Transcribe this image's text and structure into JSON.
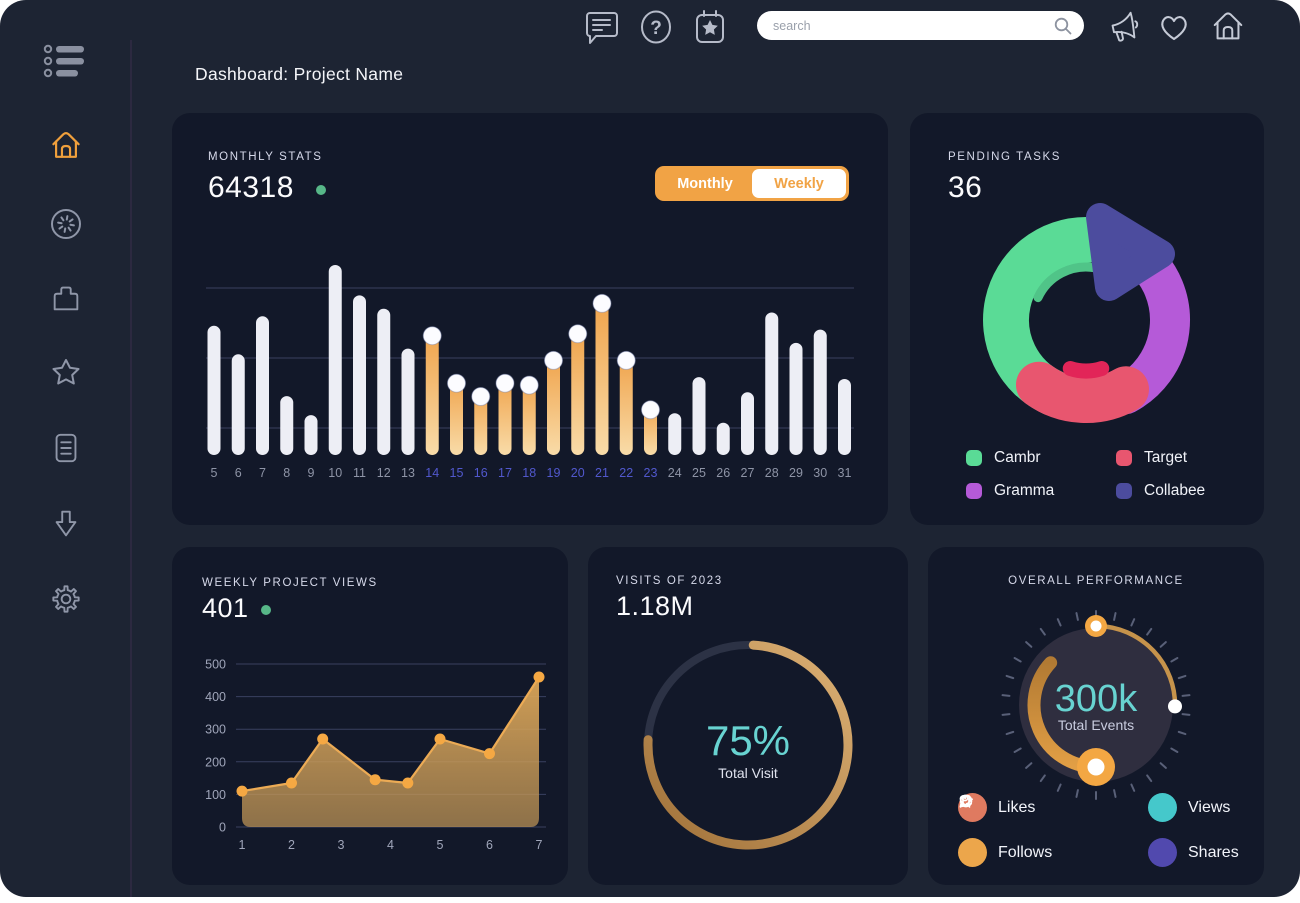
{
  "page": {
    "title": "Dashboard: Project Name"
  },
  "topbar": {
    "search_placeholder": "search",
    "icons": [
      "menu-list-icon",
      "chat-icon",
      "help-icon",
      "calendar-star-icon",
      "search-icon",
      "megaphone-icon",
      "heart-icon",
      "home-icon"
    ]
  },
  "sidebar": {
    "items": [
      "home",
      "activity",
      "briefcase",
      "favorites",
      "documents",
      "downloads",
      "settings"
    ],
    "active_item": "home",
    "active_color": "#f0a03c"
  },
  "colors": {
    "page_bg": "#ffffff",
    "dashboard_bg": "#1d2433",
    "card_bg": "#121829",
    "accent_orange": "#f1a345",
    "teal": "#68d3d1",
    "green_dot": "#57b788",
    "highlight_day_label": "#5158cd",
    "gold": "#c79a55"
  },
  "cards": {
    "monthly_stats": {
      "label": "MONTHLY STATS",
      "value": "64318",
      "toggle": {
        "monthly": "Monthly",
        "weekly": "Weekly",
        "active": "Monthly"
      }
    },
    "pending_tasks": {
      "label": "PENDING TASKS",
      "value": "36",
      "legend": [
        {
          "name": "Cambr",
          "color": "#5adb96"
        },
        {
          "name": "Target",
          "color": "#e8566f"
        },
        {
          "name": "Gramma",
          "color": "#b55ad8"
        },
        {
          "name": "Collabee",
          "color": "#4c4c9e"
        }
      ]
    },
    "weekly_views": {
      "label": "WEEKLY PROJECT VIEWS",
      "value": "401"
    },
    "visits": {
      "label": "VISITS OF 2023",
      "value": "1.18M",
      "percent": "75%",
      "caption": "Total Visit"
    },
    "performance": {
      "label": "OVERALL PERFORMANCE",
      "value": "300k",
      "caption": "Total Events",
      "legend": [
        {
          "name": "Likes",
          "color": "#df7a60"
        },
        {
          "name": "Views",
          "color": "#45c8cb"
        },
        {
          "name": "Follows",
          "color": "#eca64b"
        },
        {
          "name": "Shares",
          "color": "#5149ae"
        }
      ]
    }
  },
  "chart_data": [
    {
      "id": "monthly-stats-bars",
      "type": "bar",
      "title": "Monthly Stats",
      "categories": [
        "5",
        "6",
        "7",
        "8",
        "9",
        "10",
        "11",
        "12",
        "13",
        "14",
        "15",
        "16",
        "17",
        "18",
        "19",
        "20",
        "21",
        "22",
        "23",
        "24",
        "25",
        "26",
        "27",
        "28",
        "29",
        "30",
        "31"
      ],
      "values": [
        68,
        53,
        73,
        31,
        21,
        100,
        84,
        77,
        56,
        67,
        42,
        35,
        42,
        41,
        54,
        68,
        84,
        54,
        28,
        22,
        41,
        17,
        33,
        75,
        59,
        66,
        40
      ],
      "highlighted_categories": [
        "14",
        "15",
        "16",
        "17",
        "18",
        "19",
        "20",
        "21",
        "22",
        "23"
      ],
      "ylim": [
        0,
        100
      ],
      "grid": true,
      "gridline_count": 3,
      "bar_color": "#edeef5",
      "highlight_gradient": [
        "#efa148",
        "#f9dca9"
      ],
      "label_color": "#8e94a6",
      "highlight_label_color": "#5158cd"
    },
    {
      "id": "pending-tasks-donut",
      "type": "pie",
      "title": "Pending Tasks",
      "segments": [
        {
          "name": "Cambr",
          "value": 43,
          "color": "#5adb96",
          "from_deg": 205,
          "to_deg": 360,
          "radius": 80,
          "width": 46
        },
        {
          "name": "Gramma",
          "value": 31,
          "color": "#b55ad8",
          "from_deg": 42,
          "to_deg": 152,
          "radius": 84,
          "width": 40
        },
        {
          "name": "Target",
          "value": 18,
          "color": "#e8566f",
          "from_deg": 150,
          "to_deg": 216,
          "radius": 80,
          "width": 46
        },
        {
          "name": "Collabee",
          "value": 8,
          "color": "#4c4c9e",
          "shape": "rounded-triangle"
        }
      ],
      "inner_accent": {
        "color": "#e22558",
        "from_deg": 162,
        "to_deg": 198,
        "radius": 51,
        "width": 15
      },
      "inner_rim": {
        "color": "#50c488",
        "from_deg": 295,
        "to_deg": 370,
        "radius": 53,
        "width": 9
      },
      "legend_position": "bottom"
    },
    {
      "id": "weekly-views-area",
      "type": "area",
      "title": "Weekly Project Views",
      "x": [
        1,
        2,
        2.63,
        3.69,
        4.35,
        5,
        6,
        7
      ],
      "values": [
        110,
        135,
        270,
        145,
        135,
        270,
        225,
        460
      ],
      "x_ticks": [
        "1",
        "2",
        "3",
        "4",
        "5",
        "6",
        "7"
      ],
      "y_ticks": [
        0,
        100,
        200,
        300,
        400,
        500
      ],
      "ylim": [
        0,
        500
      ],
      "grid": true,
      "line_color": "#ecab55",
      "point_color": "#f5a843",
      "fill_gradient": [
        "#dca658",
        "#be9456"
      ]
    },
    {
      "id": "visits-progress-ring",
      "type": "pie",
      "style": "progress-ring",
      "percent": 75,
      "center_label": "75%",
      "center_caption": "Total Visit",
      "track_color": "#2c3245",
      "arc_gradient": [
        "#9f7038",
        "#ddb175"
      ],
      "start_deg": 3,
      "end_deg": 273
    },
    {
      "id": "performance-gauge",
      "type": "pie",
      "style": "gauge",
      "center_label": "300k",
      "center_caption": "Total Events",
      "ticks": 30,
      "outer_arc": {
        "from_deg": 2,
        "to_deg": 91,
        "color": "#c6934b"
      },
      "inner_arc": {
        "from_deg": -47,
        "to_deg": -180,
        "gradient": [
          "#b27a33",
          "#e29f45"
        ]
      },
      "knob_color": "#f3a743"
    }
  ]
}
